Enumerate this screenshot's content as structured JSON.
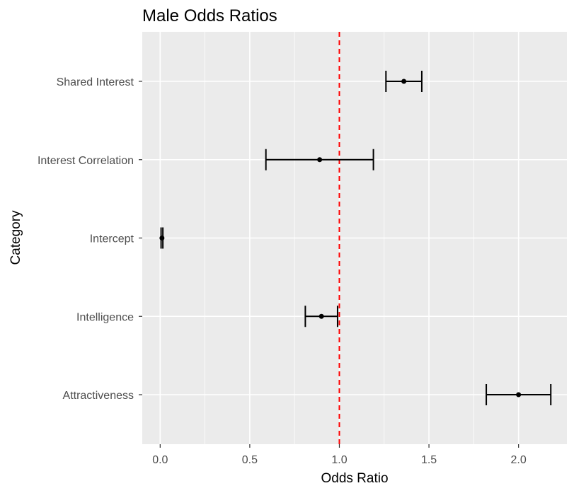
{
  "chart_data": {
    "type": "forest",
    "title": "Male Odds Ratios",
    "xlabel": "Odds Ratio",
    "ylabel": "Category",
    "xlim": [
      -0.1,
      2.27
    ],
    "x_ticks": [
      "0.0",
      "0.5",
      "1.0",
      "1.5",
      "2.0"
    ],
    "x_tick_values": [
      0.0,
      0.5,
      1.0,
      1.5,
      2.0
    ],
    "categories": [
      "Shared Interest",
      "Interest Correlation",
      "Intercept",
      "Intelligence",
      "Attractiveness"
    ],
    "estimates": [
      1.36,
      0.89,
      0.01,
      0.9,
      2.0
    ],
    "ci_lower": [
      1.26,
      0.59,
      0.005,
      0.81,
      1.82
    ],
    "ci_upper": [
      1.46,
      1.19,
      0.015,
      0.99,
      2.18
    ],
    "reference_line": {
      "x": 1.0,
      "color": "#ff0000",
      "style": "dashed"
    },
    "grid": true,
    "panel_background": "#ebebeb"
  }
}
